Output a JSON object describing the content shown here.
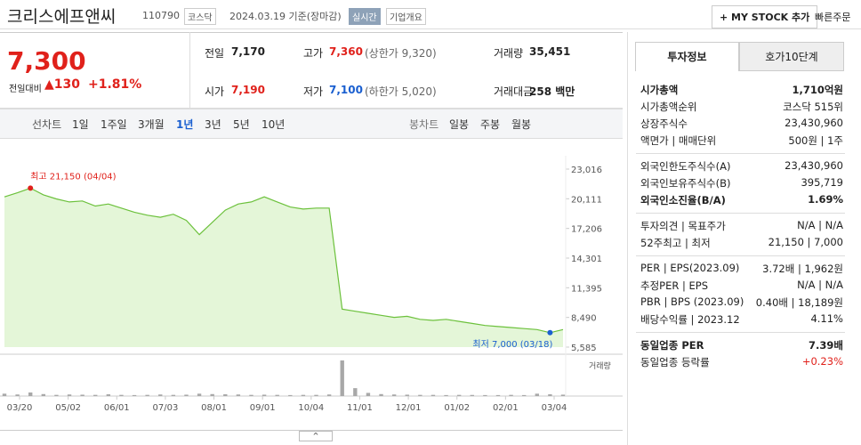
{
  "header": {
    "name": "크리스에프앤씨",
    "code": "110790",
    "market": "코스닥",
    "date": "2024.03.19 기준(장마감)",
    "realtime": "실시간",
    "company_info": "기업개요",
    "my_stock": "+ MY STOCK 추가",
    "quick_order": "빠른주문"
  },
  "quote": {
    "price": "7,300",
    "change_label": "전일대비",
    "change": "▲130",
    "change_pct": "+1.81%",
    "items": [
      {
        "label": "전일",
        "value": "7,170"
      },
      {
        "label": "고가",
        "value": "7,360",
        "note": "(상한가 9,320)"
      },
      {
        "label": "거래량",
        "value": "35,451"
      },
      {
        "label": "시가",
        "value": "7,190"
      },
      {
        "label": "저가",
        "value": "7,100",
        "note": "(하한가 5,020)"
      },
      {
        "label": "거래대금",
        "value": "258 백만"
      }
    ]
  },
  "tabs": {
    "line_label": "선차트",
    "line": [
      "1일",
      "1주일",
      "3개월",
      "1년",
      "3년",
      "5년",
      "10년"
    ],
    "candle_label": "봉차트",
    "candle": [
      "일봉",
      "주봉",
      "월봉"
    ]
  },
  "chart": {
    "type": "area",
    "prices": [
      20300,
      20700,
      21150,
      20500,
      20100,
      19800,
      19900,
      19400,
      19600,
      19200,
      18800,
      18500,
      18300,
      18600,
      18000,
      16600,
      17800,
      19000,
      19600,
      19800,
      20300,
      19800,
      19300,
      19100,
      19200,
      19200,
      9300,
      9100,
      8900,
      8700,
      8500,
      8600,
      8300,
      8200,
      8300,
      8100,
      7900,
      7700,
      7600,
      7500,
      7400,
      7300,
      7000,
      7300
    ],
    "volumes": [
      60000,
      40000,
      90000,
      50000,
      30000,
      40000,
      35000,
      30000,
      45000,
      30000,
      25000,
      30000,
      40000,
      30000,
      35000,
      60000,
      50000,
      45000,
      40000,
      30000,
      35000,
      30000,
      25000,
      30000,
      30000,
      40000,
      900000,
      200000,
      80000,
      50000,
      40000,
      35000,
      30000,
      30000,
      25000,
      30000,
      28000,
      25000,
      25000,
      30000,
      25000,
      60000,
      45000,
      35451
    ],
    "ylim": [
      5585,
      23016
    ],
    "yticks": [
      {
        "value": 5585,
        "label": "5,585"
      },
      {
        "value": 8490,
        "label": "8,490"
      },
      {
        "value": 11395,
        "label": "11,395"
      },
      {
        "value": 14301,
        "label": "14,301"
      },
      {
        "value": 17206,
        "label": "17,206"
      },
      {
        "value": 20111,
        "label": "20,111"
      },
      {
        "value": 23016,
        "label": "23,016"
      }
    ],
    "x_labels": [
      "03/20",
      "05/02",
      "06/01",
      "07/03",
      "08/01",
      "09/01",
      "10/04",
      "11/01",
      "12/01",
      "01/02",
      "02/01",
      "03/04"
    ],
    "high_label": "최고 21,150 (04/04)",
    "low_label": "최저 7,000 (03/18)",
    "volume_label": "거래량",
    "color": "#6cc13c",
    "fill": "#e4f6d8",
    "volume_color": "#a8a8a8"
  },
  "info": {
    "tabs": [
      "투자정보",
      "호가10단계"
    ],
    "groups": [
      [
        {
          "label": "시가총액",
          "value": "1,710억원",
          "bold": true
        },
        {
          "label": "시가총액순위",
          "value": "코스닥 515위"
        },
        {
          "label": "상장주식수",
          "value": "23,430,960"
        },
        {
          "label": "액면가 | 매매단위",
          "value": "500원 | 1주"
        }
      ],
      [
        {
          "label": "외국인한도주식수(A)",
          "value": "23,430,960"
        },
        {
          "label": "외국인보유주식수(B)",
          "value": "395,719"
        },
        {
          "label": "외국인소진율(B/A)",
          "value": "1.69%",
          "bold": true
        }
      ],
      [
        {
          "label": "투자의견 | 목표주가",
          "value": "N/A | N/A"
        },
        {
          "label": "52주최고 | 최저",
          "value": "21,150 | 7,000"
        }
      ],
      [
        {
          "label": "PER | EPS(2023.09)",
          "value": "3.72배 | 1,962원"
        },
        {
          "label": "추정PER | EPS",
          "value": "N/A | N/A"
        },
        {
          "label": "PBR | BPS (2023.09)",
          "value": "0.40배 | 18,189원"
        },
        {
          "label": "배당수익률 | 2023.12",
          "value": "4.11%"
        }
      ],
      [
        {
          "label": "동일업종 PER",
          "value": "7.39배",
          "bold": true
        },
        {
          "label": "동일업종 등락률",
          "value": "+0.23%",
          "red": true
        }
      ]
    ]
  }
}
